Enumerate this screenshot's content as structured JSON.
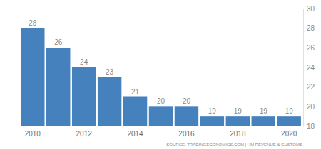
{
  "chart_data": {
    "type": "bar",
    "categories": [
      "2010",
      null,
      "2012",
      null,
      "2014",
      null,
      "2016",
      null,
      "2018",
      null,
      "2020"
    ],
    "values": [
      28,
      26,
      24,
      23,
      21,
      20,
      20,
      19,
      19,
      19,
      19
    ],
    "color": "#4581bd",
    "ylim": [
      18,
      30
    ],
    "yticks": [
      18,
      20,
      22,
      24,
      26,
      28,
      30
    ],
    "grid": false,
    "data_labels": true,
    "annotations": [
      "SOURCE: TRADINGECONOMICS.COM | HM REVENUE & CUSTOMS"
    ]
  }
}
